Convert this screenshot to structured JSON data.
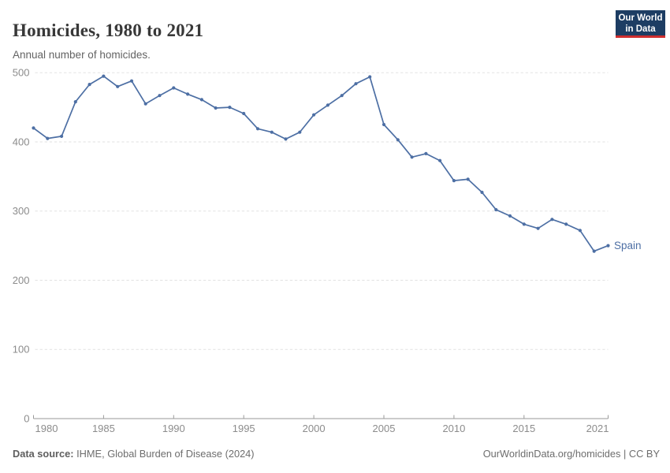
{
  "header": {
    "title": "Homicides, 1980 to 2021",
    "subtitle": "Annual number of homicides."
  },
  "logo": {
    "line1": "Our World",
    "line2": "in Data"
  },
  "footer": {
    "source_label": "Data source:",
    "source_text": " IHME, Global Burden of Disease (2024)",
    "credit": "OurWorldinData.org/homicides | CC BY"
  },
  "colors": {
    "series": "#4d6fa4",
    "logo_bg": "#1d3d63",
    "logo_underline": "#cf2e2e",
    "gridline": "#e2e2e2",
    "axis": "#9a9a9a",
    "tick_label": "#8c8c8c",
    "title": "#383838",
    "subtitle": "#636363",
    "footer": "#6d6d6d"
  },
  "chart_data": {
    "type": "line",
    "title": "Homicides, 1980 to 2021",
    "subtitle": "Annual number of homicides.",
    "xlabel": "",
    "ylabel": "",
    "xlim": [
      1980,
      2021
    ],
    "ylim": [
      0,
      500
    ],
    "x_ticks": [
      1980,
      1985,
      1990,
      1995,
      2000,
      2005,
      2010,
      2015,
      2021
    ],
    "y_ticks": [
      0,
      100,
      200,
      300,
      400,
      500
    ],
    "grid": "horizontal-dashed",
    "legend_position": "end-of-line-label",
    "series": [
      {
        "name": "Spain",
        "color": "#4d6fa4",
        "x": [
          1980,
          1981,
          1982,
          1983,
          1984,
          1985,
          1986,
          1987,
          1988,
          1989,
          1990,
          1991,
          1992,
          1993,
          1994,
          1995,
          1996,
          1997,
          1998,
          1999,
          2000,
          2001,
          2002,
          2003,
          2004,
          2005,
          2006,
          2007,
          2008,
          2009,
          2010,
          2011,
          2012,
          2013,
          2014,
          2015,
          2016,
          2017,
          2018,
          2019,
          2020,
          2021
        ],
        "values": [
          420,
          405,
          408,
          458,
          483,
          495,
          480,
          488,
          455,
          467,
          478,
          469,
          461,
          449,
          450,
          441,
          419,
          414,
          404,
          414,
          439,
          453,
          467,
          484,
          494,
          425,
          403,
          378,
          383,
          373,
          344,
          346,
          327,
          302,
          293,
          281,
          275,
          288,
          281,
          272,
          242,
          250
        ]
      }
    ]
  }
}
